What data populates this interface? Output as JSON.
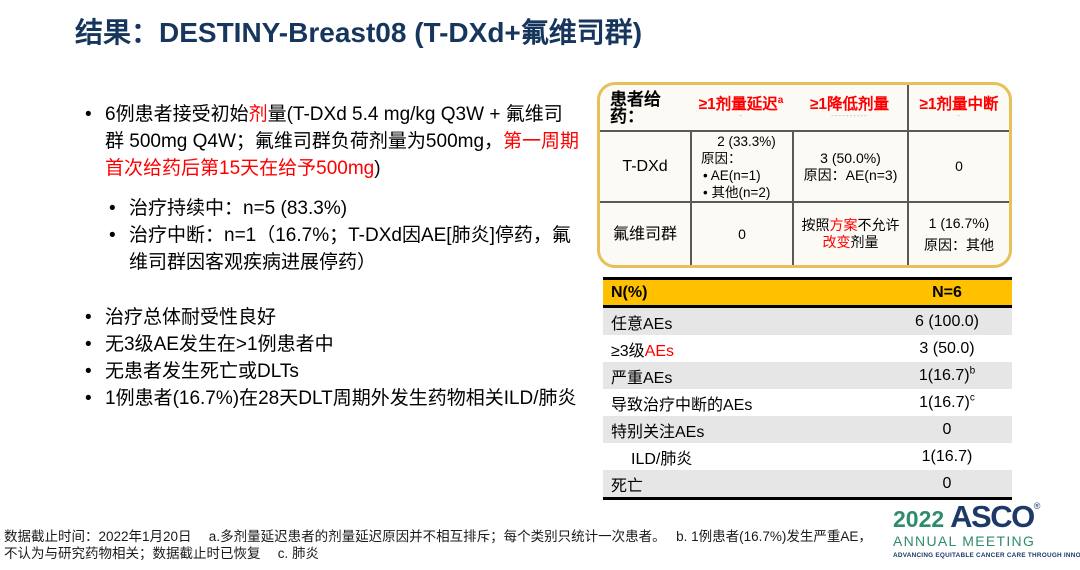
{
  "slide": {
    "title": "结果：DESTINY-Breast08 (T-DXd+氟维司群)"
  },
  "bullets": {
    "b1_seg1": "6例患者接受初始",
    "b1_seg2": "剂",
    "b1_seg3": "量(T-DXd 5.4 mg/kg Q3W + 氟维司群 500mg Q4W；氟维司群负荷剂量为500mg，",
    "b1_seg4": "第一周期首次给药后第15天在给予500mg",
    "b1_seg5": ")",
    "sub1": "治疗持续中：n=5 (83.3%)",
    "sub2": "治疗中断：n=1（16.7%；T-DXd因AE[肺炎]停药，氟维司群因客观疾病进展停药）",
    "b2": "治疗总体耐受性良好",
    "b3": "无3级AE发生在>1例患者中",
    "b4": "无患者发生死亡或DLTs",
    "b5": "1例患者(16.7%)在28天DLT周期外发生药物相关ILD/肺炎"
  },
  "dosing_table": {
    "corner_label": "患者给药：",
    "col1_header": "≥1剂量延迟",
    "col1_sup": "a",
    "col1_remnant": "-",
    "col2_header": "≥1降低剂量",
    "col2_remnant": "----------",
    "col3_header": "≥1剂量中断",
    "col3_remnant": "-",
    "tdxd": {
      "label": "T-DXd",
      "delay_value": "2 (33.3%)",
      "delay_reason_label": "原因：",
      "delay_item1": "AE(n=1)",
      "delay_item2": "其他(n=2)",
      "reduce_value": "3 (50.0%)",
      "reduce_reason": "原因：AE(n=3)",
      "interrupt_value": "0"
    },
    "fulvestrant": {
      "label": "氟维司群",
      "delay_value": "0",
      "reduce_seg1": "按照",
      "reduce_seg2": "方案",
      "reduce_seg3": "不允许",
      "reduce_seg4": "改变",
      "reduce_seg5": "剂量",
      "interrupt_value": "1 (16.7%)",
      "interrupt_reason": "原因：其他"
    }
  },
  "ae_table": {
    "header_label": "N(%)",
    "header_value": "N=6",
    "rows": [
      {
        "label": "任意AEs",
        "value": "6 (100.0)"
      },
      {
        "label_black": "≥3级",
        "label_red": "AEs",
        "value": "3 (50.0)"
      },
      {
        "label": "严重AEs",
        "value": "1(16.7)",
        "sup": "b"
      },
      {
        "label": "导致治疗中断的AEs",
        "value": "1(16.7)",
        "sup": "c"
      },
      {
        "label": "特别关注AEs",
        "value": "0"
      },
      {
        "label": "ILD/肺炎",
        "value": "1(16.7)"
      },
      {
        "label": "死亡",
        "value": "0"
      }
    ]
  },
  "footnotes": {
    "line1": "数据截止时间：2022年1月20日　 a.多剂量延迟患者的剂量延迟原因并不相互排斥；每个类别只统计一次患者。　 b. 1例患者(16.7%)发生严重AE，",
    "line2": "不认为与研究药物相关；数据截止时已恢复　 c. 肺炎"
  },
  "logo": {
    "year": "2022",
    "org": "ASCO",
    "reg": "®",
    "line2": "ANNUAL MEETING",
    "tagline": "ADVANCING EQUITABLE CANCER CARE THROUGH INNOVATION"
  },
  "colors": {
    "title_navy": "#17365D",
    "accent_red": "#FE0000",
    "table_header_gold": "#FFC000",
    "row_gray": "#E7E6E6",
    "dosing_border_gold": "#E7C05A",
    "logo_green": "#2F8C6A",
    "logo_navy": "#1C3968"
  }
}
